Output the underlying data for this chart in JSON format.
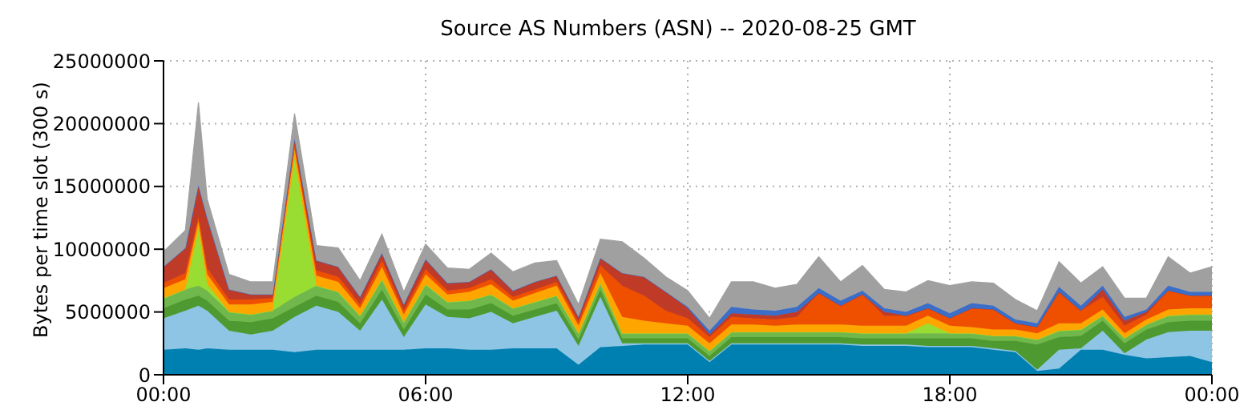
{
  "chart_data": {
    "type": "area",
    "stacked": true,
    "title": "Source AS Numbers (ASN) -- 2020-08-25 GMT",
    "ylabel": "Bytes per time slot (300 s)",
    "x": [
      0,
      0.5,
      0.8,
      1,
      1.5,
      2,
      2.5,
      3,
      3.5,
      4,
      4.5,
      5,
      5.5,
      6,
      6.5,
      7,
      7.5,
      8,
      8.5,
      9,
      9.5,
      10,
      10.5,
      11,
      11.5,
      12,
      12.5,
      13,
      13.5,
      14,
      14.5,
      15,
      15.5,
      16,
      16.5,
      17,
      17.5,
      18,
      18.5,
      19,
      19.5,
      20,
      20.5,
      21,
      21.5,
      22,
      22.5,
      23,
      23.5,
      24
    ],
    "xlim": [
      0,
      24
    ],
    "xticks": [
      {
        "value": 0,
        "label": "00:00"
      },
      {
        "value": 6,
        "label": "06:00"
      },
      {
        "value": 12,
        "label": "12:00"
      },
      {
        "value": 18,
        "label": "18:00"
      },
      {
        "value": 24,
        "label": "00:00"
      }
    ],
    "ylim": [
      0,
      25000000
    ],
    "yticks": [
      0,
      5000000,
      10000000,
      15000000,
      20000000,
      25000000
    ],
    "grid": true,
    "series": [
      {
        "color": "#0080b0",
        "values": [
          2000000.0,
          2100000.0,
          2000000.0,
          2100000.0,
          2000000.0,
          2000000.0,
          2000000.0,
          1800000.0,
          2000000.0,
          2000000.0,
          2000000.0,
          2000000.0,
          2000000.0,
          2100000.0,
          2100000.0,
          2000000.0,
          2000000.0,
          2100000.0,
          2100000.0,
          2100000.0,
          800000.0,
          2200000.0,
          2300000.0,
          2400000.0,
          2400000.0,
          2400000.0,
          1000000.0,
          2400000.0,
          2400000.0,
          2400000.0,
          2400000.0,
          2400000.0,
          2400000.0,
          2300000.0,
          2300000.0,
          2300000.0,
          2200000.0,
          2200000.0,
          2200000.0,
          2000000.0,
          1800000.0,
          300000.0,
          500000.0,
          2000000.0,
          2000000.0,
          1600000.0,
          1300000.0,
          1400000.0,
          1500000.0,
          1000000.0
        ]
      },
      {
        "color": "#8ec5e5",
        "values": [
          2500000.0,
          3000000.0,
          3500000.0,
          3000000.0,
          1500000.0,
          1200000.0,
          1500000.0,
          2800000.0,
          3500000.0,
          3000000.0,
          1500000.0,
          4000000.0,
          1000000.0,
          3500000.0,
          2500000.0,
          2500000.0,
          3000000.0,
          2000000.0,
          2500000.0,
          3000000.0,
          1500000.0,
          4000000.0,
          200000.0,
          100000.0,
          100000.0,
          100000.0,
          100000.0,
          100000.0,
          100000.0,
          100000.0,
          100000.0,
          100000.0,
          100000.0,
          100000.0,
          100000.0,
          100000.0,
          100000.0,
          100000.0,
          100000.0,
          100000.0,
          100000.0,
          100000.0,
          1500000.0,
          100000.0,
          1500000.0,
          100000.0,
          1500000.0,
          2000000.0,
          2000000.0,
          2500000.0
        ]
      },
      {
        "color": "#4f9a30",
        "values": [
          800000.0,
          900000.0,
          800000.0,
          800000.0,
          800000.0,
          1000000.0,
          1000000.0,
          800000.0,
          800000.0,
          800000.0,
          600000.0,
          800000.0,
          600000.0,
          800000.0,
          600000.0,
          700000.0,
          700000.0,
          600000.0,
          600000.0,
          600000.0,
          500000.0,
          600000.0,
          400000.0,
          400000.0,
          400000.0,
          400000.0,
          400000.0,
          500000.0,
          500000.0,
          500000.0,
          500000.0,
          500000.0,
          500000.0,
          500000.0,
          500000.0,
          500000.0,
          600000.0,
          600000.0,
          600000.0,
          600000.0,
          800000.0,
          2000000.0,
          1000000.0,
          1000000.0,
          800000.0,
          800000.0,
          800000.0,
          800000.0,
          800000.0,
          800000.0
        ]
      },
      {
        "color": "#70b84c",
        "values": [
          800000.0,
          800000.0,
          800000.0,
          800000.0,
          700000.0,
          600000.0,
          600000.0,
          800000.0,
          800000.0,
          800000.0,
          600000.0,
          800000.0,
          600000.0,
          800000.0,
          600000.0,
          700000.0,
          700000.0,
          600000.0,
          600000.0,
          600000.0,
          500000.0,
          500000.0,
          400000.0,
          400000.0,
          400000.0,
          400000.0,
          400000.0,
          400000.0,
          400000.0,
          400000.0,
          400000.0,
          400000.0,
          400000.0,
          400000.0,
          400000.0,
          400000.0,
          400000.0,
          400000.0,
          400000.0,
          400000.0,
          400000.0,
          400000.0,
          500000.0,
          500000.0,
          400000.0,
          400000.0,
          400000.0,
          500000.0,
          500000.0,
          500000.0
        ]
      },
      {
        "color": "#99dd33",
        "values": [
          0,
          0,
          4500000.0,
          500000.0,
          0,
          0,
          0,
          11000000.0,
          0,
          0,
          0,
          0,
          0,
          0,
          0,
          0,
          0,
          0,
          0,
          0,
          0,
          0,
          0,
          0,
          0,
          0,
          0,
          0,
          0,
          0,
          0,
          0,
          0,
          0,
          0,
          0,
          800000.0,
          0,
          0,
          0,
          0,
          0,
          0,
          0,
          0,
          0,
          0,
          0,
          0,
          0
        ]
      },
      {
        "color": "#ffa500",
        "values": [
          800000.0,
          800000.0,
          600000.0,
          800000.0,
          600000.0,
          800000.0,
          700000.0,
          800000.0,
          800000.0,
          800000.0,
          600000.0,
          1000000.0,
          600000.0,
          800000.0,
          600000.0,
          700000.0,
          800000.0,
          600000.0,
          700000.0,
          800000.0,
          600000.0,
          800000.0,
          1300000.0,
          1000000.0,
          800000.0,
          600000.0,
          600000.0,
          600000.0,
          600000.0,
          500000.0,
          600000.0,
          600000.0,
          600000.0,
          600000.0,
          600000.0,
          600000.0,
          600000.0,
          600000.0,
          500000.0,
          500000.0,
          500000.0,
          500000.0,
          600000.0,
          500000.0,
          500000.0,
          400000.0,
          400000.0,
          500000.0,
          500000.0,
          500000.0
        ]
      },
      {
        "color": "#ee5000",
        "values": [
          400000.0,
          500000.0,
          400000.0,
          500000.0,
          400000.0,
          400000.0,
          300000.0,
          300000.0,
          400000.0,
          400000.0,
          300000.0,
          500000.0,
          300000.0,
          400000.0,
          300000.0,
          300000.0,
          400000.0,
          300000.0,
          300000.0,
          300000.0,
          300000.0,
          600000.0,
          2500000.0,
          2000000.0,
          1000000.0,
          600000.0,
          500000.0,
          600000.0,
          500000.0,
          500000.0,
          600000.0,
          2500000.0,
          1500000.0,
          2500000.0,
          800000.0,
          800000.0,
          600000.0,
          600000.0,
          1500000.0,
          1600000.0,
          500000.0,
          500000.0,
          2500000.0,
          1000000.0,
          1000000.0,
          600000.0,
          400000.0,
          1500000.0,
          1000000.0,
          1000000.0
        ]
      },
      {
        "color": "#c03a28",
        "values": [
          1300000.0,
          2000000.0,
          2500000.0,
          4000000.0,
          800000.0,
          400000.0,
          300000.0,
          500000.0,
          800000.0,
          800000.0,
          600000.0,
          600000.0,
          500000.0,
          800000.0,
          600000.0,
          500000.0,
          800000.0,
          500000.0,
          600000.0,
          500000.0,
          400000.0,
          600000.0,
          1000000.0,
          1500000.0,
          1500000.0,
          800000.0,
          200000.0,
          300000.0,
          300000.0,
          300000.0,
          400000.0,
          0,
          0,
          0,
          300000.0,
          0,
          0,
          0,
          0,
          0,
          0,
          0,
          0,
          0,
          600000.0,
          400000.0,
          200000.0,
          0,
          0,
          0
        ]
      },
      {
        "color": "#3a6ec8",
        "values": [
          0,
          0,
          0,
          0,
          0,
          0,
          0,
          0,
          0,
          0,
          0,
          0,
          0,
          0,
          0,
          0,
          0,
          0,
          0,
          0,
          0,
          0,
          0,
          0,
          0,
          100000.0,
          300000.0,
          500000.0,
          400000.0,
          400000.0,
          400000.0,
          400000.0,
          400000.0,
          300000.0,
          300000.0,
          300000.0,
          400000.0,
          400000.0,
          400000.0,
          300000.0,
          300000.0,
          300000.0,
          400000.0,
          400000.0,
          300000.0,
          300000.0,
          200000.0,
          400000.0,
          300000.0,
          300000.0
        ]
      },
      {
        "color": "#a0a0a0",
        "values": [
          1200000.0,
          1400000.0,
          6600000.0,
          1500000.0,
          1200000.0,
          1000000.0,
          1000000.0,
          2000000.0,
          1200000.0,
          1500000.0,
          1300000.0,
          1500000.0,
          1000000.0,
          1200000.0,
          1200000.0,
          1000000.0,
          1300000.0,
          1500000.0,
          1500000.0,
          1200000.0,
          1000000.0,
          1500000.0,
          2500000.0,
          1500000.0,
          1200000.0,
          1300000.0,
          1000000.0,
          2000000.0,
          2200000.0,
          1800000.0,
          1800000.0,
          2500000.0,
          1500000.0,
          2000000.0,
          1500000.0,
          1600000.0,
          1800000.0,
          2200000.0,
          1700000.0,
          1800000.0,
          1600000.0,
          1000000.0,
          2000000.0,
          1800000.0,
          1500000.0,
          1500000.0,
          900000.0,
          2300000.0,
          1500000.0,
          2000000.0
        ]
      }
    ]
  }
}
